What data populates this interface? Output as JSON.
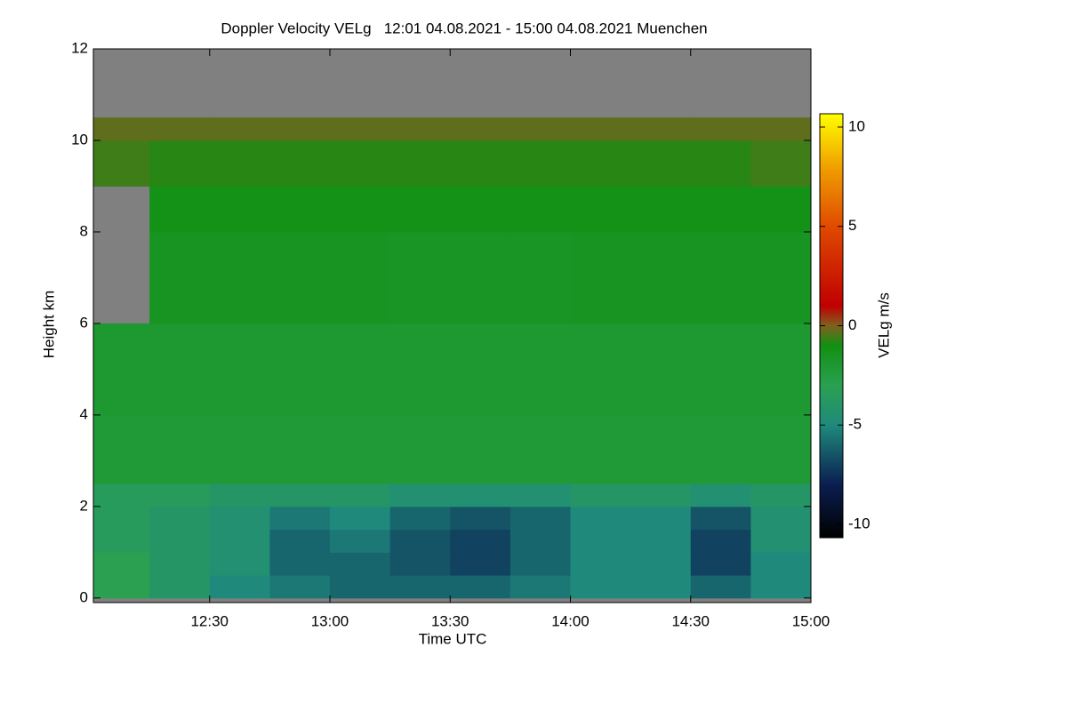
{
  "chart_data": {
    "type": "heatmap",
    "title": "Doppler Velocity VELg   12:01 04.08.2021 - 15:00 04.08.2021 Muenchen",
    "xlabel": "Time UTC",
    "ylabel": "Height km",
    "colorbar_label": "VELg m/s",
    "xlim": [
      721,
      900
    ],
    "ylim": [
      -0.1,
      12
    ],
    "xticks": [
      {
        "value": 750,
        "label": "12:30"
      },
      {
        "value": 780,
        "label": "13:00"
      },
      {
        "value": 810,
        "label": "13:30"
      },
      {
        "value": 840,
        "label": "14:00"
      },
      {
        "value": 870,
        "label": "14:30"
      },
      {
        "value": 900,
        "label": "15:00"
      }
    ],
    "yticks": [
      0,
      2,
      4,
      6,
      8,
      10,
      12
    ],
    "clim": [
      -10.67,
      10.67
    ],
    "cticks": [
      10,
      5,
      0,
      -5,
      -10
    ],
    "colormap_values": [
      -10.67,
      -8,
      -5,
      -3,
      -1,
      0,
      1,
      5,
      8,
      10.67
    ],
    "colormap_colors": [
      "#000000",
      "#0a1e50",
      "#1f8a7c",
      "#2aa050",
      "#129012",
      "#806020",
      "#c00000",
      "#e04a00",
      "#f0a000",
      "#ffff00"
    ],
    "x_edges": [
      721,
      735,
      750,
      765,
      780,
      795,
      810,
      825,
      840,
      855,
      870,
      885,
      900
    ],
    "y_edges": [
      0,
      0.5,
      1,
      1.5,
      2,
      2.5,
      4,
      6,
      8,
      9,
      10,
      10.5,
      12
    ],
    "z": [
      [
        -3,
        -4,
        -5,
        -5.5,
        -6,
        -6,
        -6,
        -5.5,
        -5,
        -5,
        -6,
        -5
      ],
      [
        -3,
        -4,
        -4.5,
        -6,
        -6,
        -6.5,
        -7,
        -6,
        -5,
        -5,
        -7,
        -5
      ],
      [
        -3.5,
        -4,
        -4.5,
        -6,
        -5.5,
        -6.5,
        -7,
        -6,
        -5,
        -5,
        -7,
        -4.5
      ],
      [
        -3.5,
        -4,
        -4.5,
        -5.5,
        -5,
        -6,
        -6.5,
        -6,
        -5,
        -5,
        -6.5,
        -4.5
      ],
      [
        -3.5,
        -3.5,
        -4,
        -4,
        -4,
        -4.5,
        -4.5,
        -4.5,
        -4,
        -4,
        -4.5,
        -4
      ],
      [
        -2.2,
        -2.2,
        -2.2,
        -2.2,
        -2.2,
        -2.2,
        -2.2,
        -2.2,
        -2.2,
        -2.2,
        -2.2,
        -2.2
      ],
      [
        -2,
        -2,
        -2,
        -2,
        -2,
        -2,
        -2,
        -2,
        -2,
        -2,
        -2,
        -2
      ],
      [
        null,
        -1.5,
        -1.5,
        -1.5,
        -1.5,
        -1.6,
        -1.6,
        -1.6,
        -1.5,
        -1.5,
        -1.5,
        -1.5
      ],
      [
        null,
        -1.2,
        -1.2,
        -1.2,
        -1.2,
        -1.2,
        -1.2,
        -1.2,
        -1.2,
        -1.2,
        -1.2,
        -1.2
      ],
      [
        -0.6,
        -0.8,
        -0.8,
        -0.8,
        -0.8,
        -0.8,
        -0.8,
        -0.8,
        -0.8,
        -0.8,
        -0.8,
        -0.6
      ],
      [
        -0.3,
        -0.3,
        -0.3,
        -0.3,
        -0.3,
        -0.3,
        -0.3,
        -0.3,
        -0.3,
        -0.3,
        -0.3,
        -0.3
      ],
      [
        null,
        null,
        null,
        null,
        null,
        null,
        null,
        null,
        null,
        null,
        null,
        null
      ]
    ]
  }
}
